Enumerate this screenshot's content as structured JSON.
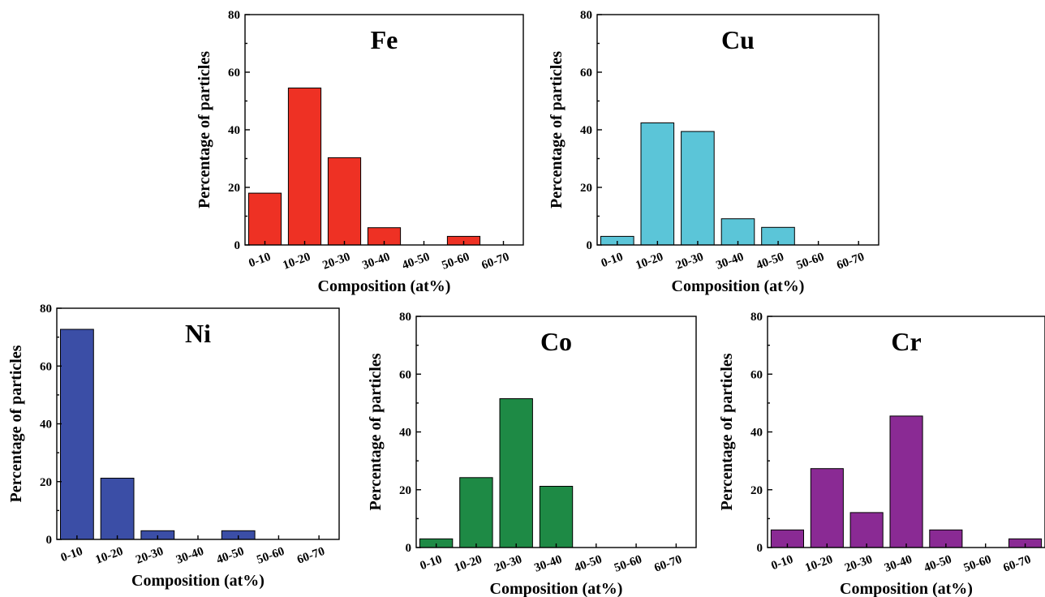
{
  "chart_data": [
    {
      "type": "bar",
      "title": "Fe",
      "xlabel": "Composition (at%)",
      "ylabel": "Percentage of particles",
      "ylim": [
        0,
        80
      ],
      "yticks": [
        0,
        20,
        40,
        60,
        80
      ],
      "categories": [
        "0-10",
        "10-20",
        "20-30",
        "30-40",
        "40-50",
        "50-60",
        "60-70"
      ],
      "values": [
        18,
        54.5,
        30.3,
        6,
        0,
        3,
        0
      ],
      "color": "#ee3124"
    },
    {
      "type": "bar",
      "title": "Cu",
      "xlabel": "Composition (at%)",
      "ylabel": "Percentage of particles",
      "ylim": [
        0,
        80
      ],
      "yticks": [
        0,
        20,
        40,
        60,
        80
      ],
      "categories": [
        "0-10",
        "10-20",
        "20-30",
        "30-40",
        "40-50",
        "50-60",
        "60-70"
      ],
      "values": [
        3,
        42.4,
        39.4,
        9.1,
        6.1,
        0,
        0
      ],
      "color": "#5bc5d8"
    },
    {
      "type": "bar",
      "title": "Ni",
      "xlabel": "Composition (at%)",
      "ylabel": "Percentage of particles",
      "ylim": [
        0,
        80
      ],
      "yticks": [
        0,
        20,
        40,
        60,
        80
      ],
      "categories": [
        "0-10",
        "10-20",
        "20-30",
        "30-40",
        "40-50",
        "50-60",
        "60-70"
      ],
      "values": [
        72.7,
        21.2,
        3,
        0,
        3,
        0,
        0
      ],
      "color": "#3b4ea6"
    },
    {
      "type": "bar",
      "title": "Co",
      "xlabel": "Composition (at%)",
      "ylabel": "Percentage of particles",
      "ylim": [
        0,
        80
      ],
      "yticks": [
        0,
        20,
        40,
        60,
        80
      ],
      "categories": [
        "0-10",
        "10-20",
        "20-30",
        "30-40",
        "40-50",
        "50-60",
        "60-70"
      ],
      "values": [
        3,
        24.2,
        51.5,
        21.2,
        0,
        0,
        0
      ],
      "color": "#1e8a45"
    },
    {
      "type": "bar",
      "title": "Cr",
      "xlabel": "Composition (at%)",
      "ylabel": "Percentage of particles",
      "ylim": [
        0,
        80
      ],
      "yticks": [
        0,
        20,
        40,
        60,
        80
      ],
      "categories": [
        "0-10",
        "10-20",
        "20-30",
        "30-40",
        "40-50",
        "50-60",
        "60-70"
      ],
      "values": [
        6.1,
        27.3,
        12.1,
        45.5,
        6.1,
        0,
        3
      ],
      "color": "#8a2a94"
    }
  ]
}
